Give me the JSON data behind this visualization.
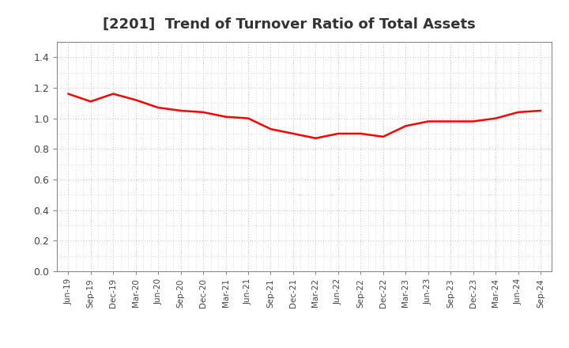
{
  "title": "[2201]  Trend of Turnover Ratio of Total Assets",
  "title_fontsize": 13,
  "title_color": "#333333",
  "line_color": "#FF0000",
  "line_width": 1.8,
  "background_color": "#FFFFFF",
  "plot_bg_color": "#FFFFFF",
  "grid_color": "#AAAAAA",
  "ylim": [
    0.0,
    1.5
  ],
  "yticks": [
    0.0,
    0.2,
    0.4,
    0.6,
    0.8,
    1.0,
    1.2,
    1.4
  ],
  "x_labels": [
    "Jun-19",
    "Sep-19",
    "Dec-19",
    "Mar-20",
    "Jun-20",
    "Sep-20",
    "Dec-20",
    "Mar-21",
    "Jun-21",
    "Sep-21",
    "Dec-21",
    "Mar-22",
    "Jun-22",
    "Sep-22",
    "Dec-22",
    "Mar-23",
    "Jun-23",
    "Sep-23",
    "Dec-23",
    "Mar-24",
    "Jun-24",
    "Sep-24"
  ],
  "y_values": [
    1.16,
    1.11,
    1.16,
    1.12,
    1.07,
    1.05,
    1.04,
    1.01,
    1.0,
    0.93,
    0.9,
    0.87,
    0.9,
    0.9,
    0.88,
    0.95,
    0.98,
    0.98,
    0.98,
    1.0,
    1.04,
    1.05
  ],
  "tick_label_color": "#444444",
  "spine_color": "#888888",
  "figsize": [
    7.2,
    4.4
  ],
  "dpi": 100
}
